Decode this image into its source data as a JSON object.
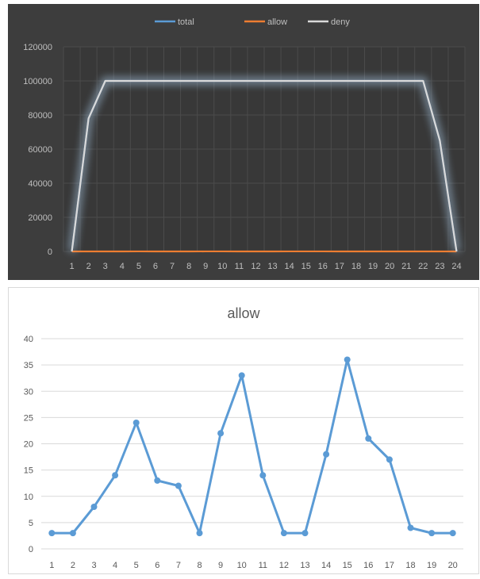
{
  "chart_data": [
    {
      "type": "line",
      "title": "",
      "x": [
        "1",
        "2",
        "3",
        "4",
        "5",
        "6",
        "7",
        "8",
        "9",
        "10",
        "11",
        "12",
        "13",
        "14",
        "15",
        "16",
        "17",
        "18",
        "19",
        "20",
        "21",
        "22",
        "23",
        "24"
      ],
      "ylim": [
        0,
        120000
      ],
      "yticks": [
        "0",
        "20000",
        "40000",
        "60000",
        "80000",
        "100000",
        "120000"
      ],
      "legend_position": "top",
      "grid": true,
      "series": [
        {
          "name": "total",
          "color": "#5b9bd5",
          "values": [
            0,
            78000,
            100000,
            100000,
            100000,
            100000,
            100000,
            100000,
            100000,
            100000,
            100000,
            100000,
            100000,
            100000,
            100000,
            100000,
            100000,
            100000,
            100000,
            100000,
            100000,
            100000,
            65000,
            0
          ]
        },
        {
          "name": "allow",
          "color": "#ed7d31",
          "values": [
            3,
            3,
            8,
            14,
            24,
            13,
            12,
            3,
            22,
            33,
            14,
            3,
            3,
            18,
            36,
            21,
            17,
            4,
            3,
            3,
            3,
            3,
            3,
            3
          ]
        },
        {
          "name": "deny",
          "color": "#d9d9d9",
          "values": [
            0,
            78000,
            100000,
            100000,
            100000,
            100000,
            100000,
            100000,
            100000,
            100000,
            100000,
            100000,
            100000,
            100000,
            100000,
            100000,
            100000,
            100000,
            100000,
            100000,
            100000,
            100000,
            65000,
            0
          ]
        }
      ]
    },
    {
      "type": "line",
      "title": "allow",
      "x": [
        "1",
        "2",
        "3",
        "4",
        "5",
        "6",
        "7",
        "8",
        "9",
        "10",
        "11",
        "12",
        "13",
        "14",
        "15",
        "16",
        "17",
        "18",
        "19",
        "20"
      ],
      "ylim": [
        0,
        40
      ],
      "yticks": [
        "0",
        "5",
        "10",
        "15",
        "20",
        "25",
        "30",
        "35",
        "40"
      ],
      "grid": true,
      "series": [
        {
          "name": "allow",
          "color": "#5b9bd5",
          "values": [
            3,
            3,
            8,
            14,
            24,
            13,
            12,
            3,
            22,
            33,
            14,
            3,
            3,
            18,
            36,
            21,
            17,
            4,
            3,
            3
          ]
        }
      ]
    }
  ]
}
